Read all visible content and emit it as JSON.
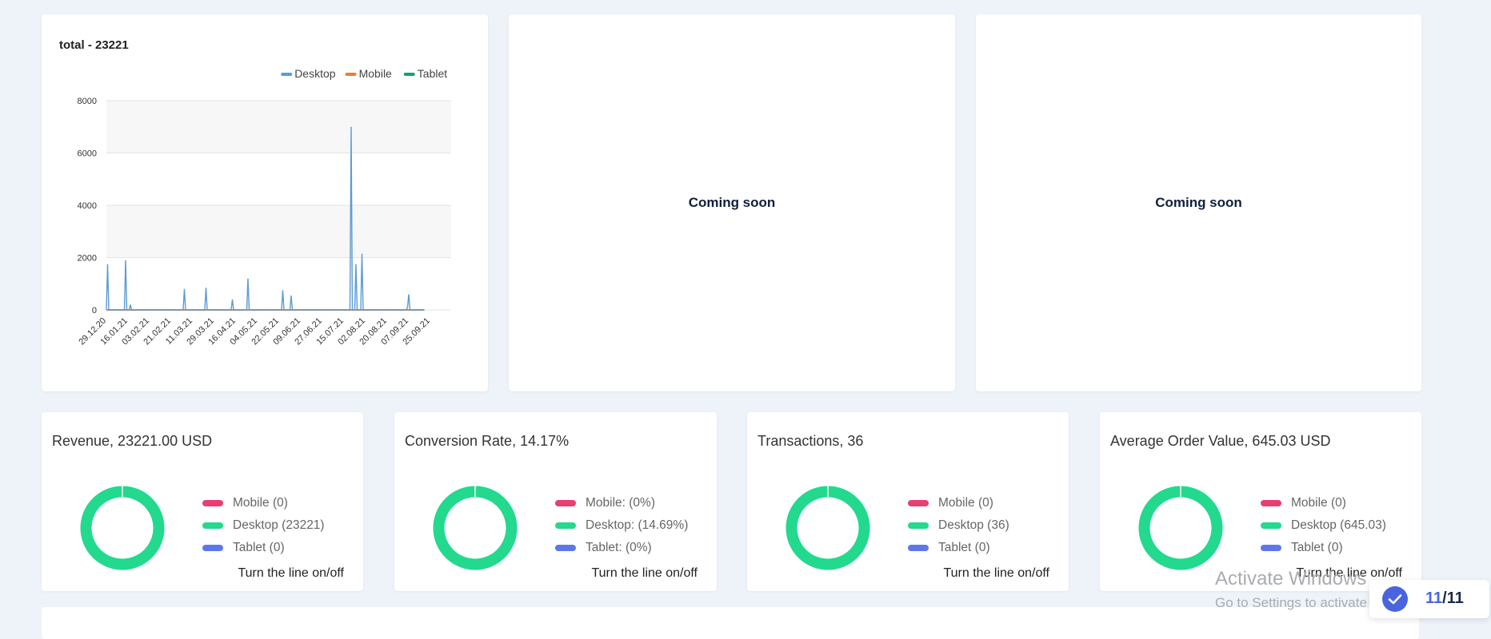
{
  "chart_card": {
    "title": "total - 23221",
    "chart_data": {
      "type": "line",
      "title": "total - 23221",
      "x": [
        "29.12.20",
        "16.01.21",
        "03.02.21",
        "21.02.21",
        "11.03.21",
        "29.03.21",
        "16.04.21",
        "04.05.21",
        "22.05.21",
        "09.06.21",
        "27.06.21",
        "15.07.21",
        "02.08.21",
        "20.08.21",
        "07.09.21",
        "25.09.21"
      ],
      "ylim": [
        0,
        8000
      ],
      "yticks": [
        0,
        2000,
        4000,
        6000,
        8000
      ],
      "legend_position": "top-right",
      "series": [
        {
          "name": "Desktop",
          "color": "#5b9bd5",
          "points": [
            [
              "29.12.20",
              0
            ],
            [
              "30.12.20",
              1750
            ],
            [
              "31.12.20",
              0
            ],
            [
              "13.01.21",
              0
            ],
            [
              "14.01.21",
              1900
            ],
            [
              "15.01.21",
              0
            ],
            [
              "17.01.21",
              0
            ],
            [
              "18.01.21",
              200
            ],
            [
              "19.01.21",
              0
            ],
            [
              "03.03.21",
              0
            ],
            [
              "04.03.21",
              800
            ],
            [
              "05.03.21",
              0
            ],
            [
              "21.03.21",
              0
            ],
            [
              "22.03.21",
              850
            ],
            [
              "23.03.21",
              0
            ],
            [
              "12.04.21",
              0
            ],
            [
              "13.04.21",
              400
            ],
            [
              "14.04.21",
              0
            ],
            [
              "25.04.21",
              0
            ],
            [
              "26.04.21",
              1200
            ],
            [
              "27.04.21",
              0
            ],
            [
              "24.05.21",
              0
            ],
            [
              "25.05.21",
              750
            ],
            [
              "26.05.21",
              0
            ],
            [
              "31.05.21",
              0
            ],
            [
              "01.06.21",
              550
            ],
            [
              "02.06.21",
              0
            ],
            [
              "20.07.21",
              0
            ],
            [
              "21.07.21",
              7000
            ],
            [
              "22.07.21",
              0
            ],
            [
              "24.07.21",
              0
            ],
            [
              "25.07.21",
              1750
            ],
            [
              "26.07.21",
              0
            ],
            [
              "29.07.21",
              0
            ],
            [
              "30.07.21",
              2150
            ],
            [
              "31.07.21",
              0
            ],
            [
              "05.09.21",
              0
            ],
            [
              "06.09.21",
              100
            ],
            [
              "07.09.21",
              600
            ],
            [
              "08.09.21",
              0
            ],
            [
              "20.09.21",
              0
            ]
          ]
        },
        {
          "name": "Mobile",
          "color": "#ed7d31",
          "points": [
            [
              "29.12.20",
              0
            ],
            [
              "20.09.21",
              0
            ]
          ]
        },
        {
          "name": "Tablet",
          "color": "#1d9e74",
          "points": [
            [
              "29.12.20",
              0
            ],
            [
              "20.09.21",
              0
            ]
          ]
        }
      ]
    }
  },
  "placeholder_cards": [
    {
      "text": "Coming soon"
    },
    {
      "text": "Coming soon"
    }
  ],
  "kpi_cards": [
    {
      "title": "Revenue, 23221.00 USD",
      "legend": [
        "Mobile (0)",
        "Desktop (23221)",
        "Tablet (0)"
      ],
      "toggle": "Turn the line on/off",
      "shares": {
        "mobile": 0,
        "desktop": 1,
        "tablet": 0
      }
    },
    {
      "title": "Conversion Rate, 14.17%",
      "legend": [
        "Mobile: (0%)",
        "Desktop: (14.69%)",
        "Tablet: (0%)"
      ],
      "toggle": "Turn the line on/off",
      "shares": {
        "mobile": 0,
        "desktop": 1,
        "tablet": 0
      }
    },
    {
      "title": "Transactions, 36",
      "legend": [
        "Mobile (0)",
        "Desktop (36)",
        "Tablet (0)"
      ],
      "toggle": "Turn the line on/off",
      "shares": {
        "mobile": 0,
        "desktop": 1,
        "tablet": 0
      }
    },
    {
      "title": "Average Order Value, 645.03 USD",
      "legend": [
        "Mobile (0)",
        "Desktop (645.03)",
        "Tablet (0)"
      ],
      "toggle": "Turn the line on/off",
      "shares": {
        "mobile": 0,
        "desktop": 1,
        "tablet": 0
      }
    }
  ],
  "kpi_colors": {
    "mobile": "#e83e72",
    "desktop": "#22d98e",
    "tablet": "#5c77ee"
  },
  "watermark": {
    "line1": "Activate Windows",
    "line2": "Go to Settings to activate Windows."
  },
  "pager": {
    "current": "11",
    "total": "/11"
  }
}
